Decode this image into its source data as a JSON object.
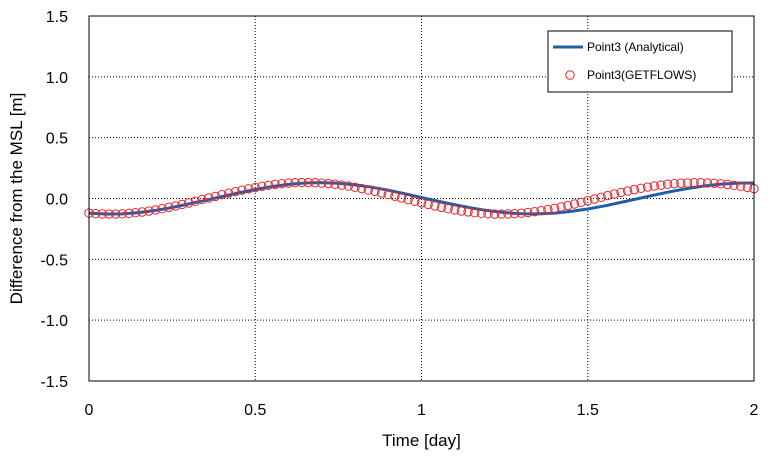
{
  "chart_data": {
    "type": "line",
    "title": "",
    "xlabel": "Time [day]",
    "ylabel": "Difference from the MSL [m]",
    "xlim": [
      0,
      2
    ],
    "ylim": [
      -1.5,
      1.5
    ],
    "x_ticks": [
      "0",
      "0.5",
      "1",
      "1.5",
      "2"
    ],
    "y_ticks": [
      "1.5",
      "1.0",
      "0.5",
      "0.0",
      "-0.5",
      "-1.0",
      "-1.5"
    ],
    "grid": true,
    "legend_position": "top-right",
    "series": [
      {
        "name": "Point3 (Analytical)",
        "style": "line",
        "color": "#1f5fa8",
        "x": [
          0,
          0.05,
          0.1,
          0.15,
          0.2,
          0.25,
          0.3,
          0.35,
          0.4,
          0.45,
          0.5,
          0.55,
          0.6,
          0.65,
          0.7,
          0.75,
          0.8,
          0.85,
          0.9,
          0.95,
          1.0,
          1.05,
          1.1,
          1.15,
          1.2,
          1.25,
          1.3,
          1.35,
          1.4,
          1.45,
          1.5,
          1.55,
          1.6,
          1.65,
          1.7,
          1.75,
          1.8,
          1.85,
          1.9,
          1.95,
          2.0
        ],
        "y": [
          -0.12,
          -0.127,
          -0.126,
          -0.116,
          -0.098,
          -0.074,
          -0.045,
          -0.015,
          0.016,
          0.046,
          0.074,
          0.098,
          0.116,
          0.127,
          0.13,
          0.125,
          0.112,
          0.093,
          0.068,
          0.039,
          0.008,
          -0.022,
          -0.051,
          -0.078,
          -0.1,
          -0.116,
          -0.125,
          -0.126,
          -0.12,
          -0.106,
          -0.086,
          -0.061,
          -0.032,
          -0.002,
          0.028,
          0.057,
          0.082,
          0.103,
          0.118,
          0.126,
          0.127
        ]
      },
      {
        "name": "Point3(GETFLOWS)",
        "style": "markers",
        "color": "#e8262a",
        "x": [
          0,
          0.02,
          0.04,
          0.06,
          0.08,
          0.1,
          0.12,
          0.14,
          0.16,
          0.18,
          0.2,
          0.22,
          0.24,
          0.26,
          0.28,
          0.3,
          0.32,
          0.34,
          0.36,
          0.38,
          0.4,
          0.42,
          0.44,
          0.46,
          0.48,
          0.5,
          0.52,
          0.54,
          0.56,
          0.58,
          0.6,
          0.62,
          0.64,
          0.66,
          0.68,
          0.7,
          0.72,
          0.74,
          0.76,
          0.78,
          0.8,
          0.82,
          0.84,
          0.86,
          0.88,
          0.9,
          0.92,
          0.94,
          0.96,
          0.98,
          1.0,
          1.02,
          1.04,
          1.06,
          1.08,
          1.1,
          1.12,
          1.14,
          1.16,
          1.18,
          1.2,
          1.22,
          1.24,
          1.26,
          1.28,
          1.3,
          1.32,
          1.34,
          1.36,
          1.38,
          1.4,
          1.42,
          1.44,
          1.46,
          1.48,
          1.5,
          1.52,
          1.54,
          1.56,
          1.58,
          1.6,
          1.62,
          1.64,
          1.66,
          1.68,
          1.7,
          1.72,
          1.74,
          1.76,
          1.78,
          1.8,
          1.82,
          1.84,
          1.86,
          1.88,
          1.9,
          1.92,
          1.94,
          1.96,
          1.98,
          2.0
        ],
        "y": [
          -0.12,
          -0.124,
          -0.127,
          -0.128,
          -0.128,
          -0.126,
          -0.122,
          -0.117,
          -0.111,
          -0.103,
          -0.094,
          -0.084,
          -0.073,
          -0.061,
          -0.049,
          -0.036,
          -0.023,
          -0.009,
          0.004,
          0.017,
          0.031,
          0.044,
          0.056,
          0.068,
          0.08,
          0.09,
          0.1,
          0.108,
          0.116,
          0.122,
          0.127,
          0.13,
          0.131,
          0.131,
          0.13,
          0.127,
          0.123,
          0.117,
          0.11,
          0.102,
          0.092,
          0.082,
          0.07,
          0.058,
          0.045,
          0.032,
          0.018,
          0.004,
          -0.01,
          -0.023,
          -0.036,
          -0.049,
          -0.061,
          -0.073,
          -0.084,
          -0.094,
          -0.103,
          -0.11,
          -0.117,
          -0.122,
          -0.126,
          -0.128,
          -0.128,
          -0.127,
          -0.125,
          -0.121,
          -0.115,
          -0.108,
          -0.1,
          -0.091,
          -0.081,
          -0.069,
          -0.057,
          -0.045,
          -0.031,
          -0.018,
          -0.004,
          0.01,
          0.024,
          0.037,
          0.05,
          0.062,
          0.073,
          0.084,
          0.094,
          0.103,
          0.11,
          0.117,
          0.122,
          0.126,
          0.128,
          0.13,
          0.13,
          0.128,
          0.125,
          0.121,
          0.115,
          0.108,
          0.1,
          0.091,
          0.081
        ]
      }
    ]
  }
}
